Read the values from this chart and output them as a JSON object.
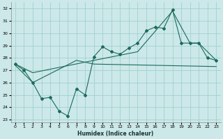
{
  "xlabel": "Humidex (Indice chaleur)",
  "bg_color": "#cce8e8",
  "grid_color": "#99cccc",
  "line_color": "#1a6b5a",
  "xlim": [
    -0.5,
    23.5
  ],
  "ylim": [
    22.8,
    32.5
  ],
  "yticks": [
    23,
    24,
    25,
    26,
    27,
    28,
    29,
    30,
    31,
    32
  ],
  "xticks": [
    0,
    1,
    2,
    3,
    4,
    5,
    6,
    7,
    8,
    9,
    10,
    11,
    12,
    13,
    14,
    15,
    16,
    17,
    18,
    19,
    20,
    21,
    22,
    23
  ],
  "line1_x": [
    0,
    1,
    2,
    3,
    4,
    5,
    6,
    7,
    8,
    9,
    10,
    11,
    12,
    13,
    14,
    15,
    16,
    17,
    18,
    19,
    20,
    21,
    22,
    23
  ],
  "line1_y": [
    27.5,
    27.0,
    26.0,
    24.7,
    24.8,
    23.7,
    23.3,
    25.5,
    25.0,
    28.1,
    28.9,
    28.5,
    28.3,
    28.8,
    29.2,
    30.2,
    30.5,
    30.4,
    31.9,
    29.2,
    29.2,
    29.2,
    28.0,
    27.8
  ],
  "line2_x": [
    0,
    2,
    9,
    14,
    18,
    20,
    21,
    23
  ],
  "line2_y": [
    27.5,
    26.8,
    27.8,
    28.5,
    31.8,
    29.2,
    29.2,
    27.8
  ],
  "line3_x": [
    0,
    2,
    7,
    9,
    23
  ],
  "line3_y": [
    27.4,
    26.0,
    27.8,
    27.5,
    27.3
  ]
}
